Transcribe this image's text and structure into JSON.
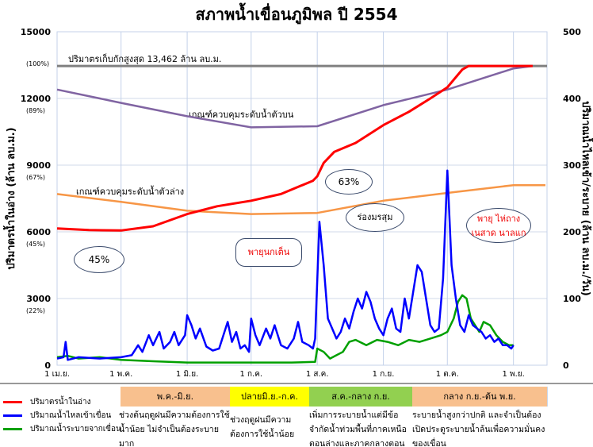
{
  "chart_data": {
    "type": "line",
    "title": "สภาพน้ำเขื่อนภูมิพล ปี 2554",
    "ylabel": "ปริมาตรน้ำในอ่าง (ล้าน ลบ.ม.)",
    "y2label": "ปริมาณน้ำไหลเข้า/ระบาย (ล้าน ลบ.ม./วัน)",
    "ylim": [
      0,
      15000
    ],
    "y2lim": [
      0,
      500
    ],
    "yticks": [
      "0",
      "3000",
      "6000",
      "9000",
      "12000",
      "15000"
    ],
    "ypct": [
      "(22%)",
      "(45%)",
      "(67%)",
      "(89%)",
      "(100%)"
    ],
    "y2ticks": [
      "0",
      "100",
      "200",
      "300",
      "400",
      "500"
    ],
    "xticks": [
      "1 เม.ย.",
      "1 พ.ค.",
      "1 มิ.ย.",
      "1 ก.ค.",
      "1 ส.ค.",
      "1 ก.ย.",
      "1 ต.ค.",
      "1 พ.ย."
    ],
    "max_capacity": {
      "value": 13462,
      "label": "ปริมาตรเก็บกักสูงสุด 13,462  ล้าน ลบ.ม."
    },
    "upper_rule_label": "เกณฑ์ควบคุมระดับน้ำตัวบน",
    "lower_rule_label": "เกณฑ์ควบคุมระดับน้ำตัวล่าง",
    "series": [
      {
        "name": "ปริมาตรน้ำในอ่าง",
        "axis": "left",
        "color": "#ff0000",
        "points": [
          [
            0,
            6150
          ],
          [
            15,
            6080
          ],
          [
            30,
            6060
          ],
          [
            45,
            6250
          ],
          [
            61,
            6800
          ],
          [
            75,
            7150
          ],
          [
            91,
            7400
          ],
          [
            105,
            7700
          ],
          [
            120,
            8300
          ],
          [
            122,
            8500
          ],
          [
            125,
            9100
          ],
          [
            130,
            9600
          ],
          [
            140,
            10000
          ],
          [
            153,
            10800
          ],
          [
            165,
            11400
          ],
          [
            175,
            12000
          ],
          [
            183,
            12500
          ],
          [
            190,
            13300
          ],
          [
            193,
            13462
          ],
          [
            223,
            13462
          ]
        ]
      },
      {
        "name": "เกณฑ์ควบคุมระดับน้ำตัวบน",
        "axis": "left",
        "color": "#8064a2",
        "points": [
          [
            0,
            12400
          ],
          [
            30,
            11800
          ],
          [
            61,
            11200
          ],
          [
            91,
            10700
          ],
          [
            122,
            10750
          ],
          [
            153,
            11700
          ],
          [
            183,
            12400
          ],
          [
            214,
            13350
          ],
          [
            223,
            13462
          ]
        ]
      },
      {
        "name": "เกณฑ์ควบคุมระดับน้ำตัวล่าง",
        "axis": "left",
        "color": "#f79646",
        "points": [
          [
            0,
            7700
          ],
          [
            30,
            7350
          ],
          [
            61,
            6950
          ],
          [
            91,
            6800
          ],
          [
            122,
            6850
          ],
          [
            153,
            7400
          ],
          [
            183,
            7750
          ],
          [
            214,
            8100
          ],
          [
            229,
            8100
          ]
        ]
      },
      {
        "name": "ปริมาณน้ำไหลเข้าเขื่อน",
        "axis": "right",
        "color": "#0000ff",
        "points": [
          [
            0,
            10
          ],
          [
            3,
            12
          ],
          [
            4,
            35
          ],
          [
            5,
            8
          ],
          [
            10,
            12
          ],
          [
            20,
            10
          ],
          [
            30,
            12
          ],
          [
            35,
            15
          ],
          [
            38,
            30
          ],
          [
            40,
            20
          ],
          [
            43,
            45
          ],
          [
            45,
            30
          ],
          [
            48,
            50
          ],
          [
            50,
            25
          ],
          [
            53,
            35
          ],
          [
            55,
            50
          ],
          [
            57,
            30
          ],
          [
            60,
            45
          ],
          [
            61,
            75
          ],
          [
            63,
            60
          ],
          [
            65,
            40
          ],
          [
            67,
            55
          ],
          [
            70,
            28
          ],
          [
            73,
            22
          ],
          [
            76,
            25
          ],
          [
            78,
            45
          ],
          [
            80,
            65
          ],
          [
            82,
            35
          ],
          [
            84,
            50
          ],
          [
            86,
            25
          ],
          [
            88,
            30
          ],
          [
            90,
            20
          ],
          [
            91,
            70
          ],
          [
            93,
            45
          ],
          [
            95,
            30
          ],
          [
            98,
            55
          ],
          [
            100,
            40
          ],
          [
            102,
            60
          ],
          [
            105,
            30
          ],
          [
            108,
            25
          ],
          [
            111,
            40
          ],
          [
            113,
            65
          ],
          [
            115,
            35
          ],
          [
            118,
            30
          ],
          [
            120,
            25
          ],
          [
            121,
            40
          ],
          [
            123,
            215
          ],
          [
            125,
            150
          ],
          [
            127,
            70
          ],
          [
            129,
            55
          ],
          [
            131,
            40
          ],
          [
            133,
            50
          ],
          [
            135,
            70
          ],
          [
            137,
            55
          ],
          [
            139,
            80
          ],
          [
            141,
            100
          ],
          [
            143,
            85
          ],
          [
            145,
            110
          ],
          [
            147,
            95
          ],
          [
            149,
            70
          ],
          [
            151,
            55
          ],
          [
            153,
            45
          ],
          [
            155,
            70
          ],
          [
            157,
            85
          ],
          [
            159,
            55
          ],
          [
            161,
            50
          ],
          [
            163,
            100
          ],
          [
            165,
            70
          ],
          [
            167,
            110
          ],
          [
            169,
            150
          ],
          [
            171,
            140
          ],
          [
            173,
            100
          ],
          [
            175,
            60
          ],
          [
            177,
            50
          ],
          [
            179,
            55
          ],
          [
            181,
            130
          ],
          [
            183,
            292
          ],
          [
            185,
            150
          ],
          [
            187,
            100
          ],
          [
            189,
            60
          ],
          [
            191,
            50
          ],
          [
            193,
            75
          ],
          [
            195,
            60
          ],
          [
            197,
            55
          ],
          [
            199,
            50
          ],
          [
            201,
            40
          ],
          [
            203,
            45
          ],
          [
            205,
            35
          ],
          [
            207,
            40
          ],
          [
            209,
            30
          ],
          [
            211,
            30
          ],
          [
            213,
            25
          ],
          [
            214,
            30
          ]
        ]
      },
      {
        "name": "ปริมาณน้ำระบายจากเขื่อน",
        "axis": "right",
        "color": "#00a000",
        "points": [
          [
            0,
            12
          ],
          [
            5,
            14
          ],
          [
            10,
            10
          ],
          [
            20,
            12
          ],
          [
            30,
            8
          ],
          [
            45,
            6
          ],
          [
            61,
            4
          ],
          [
            91,
            4
          ],
          [
            110,
            4
          ],
          [
            121,
            5
          ],
          [
            122,
            25
          ],
          [
            125,
            20
          ],
          [
            128,
            10
          ],
          [
            131,
            15
          ],
          [
            134,
            20
          ],
          [
            137,
            35
          ],
          [
            140,
            38
          ],
          [
            145,
            30
          ],
          [
            150,
            38
          ],
          [
            155,
            35
          ],
          [
            160,
            30
          ],
          [
            165,
            38
          ],
          [
            170,
            35
          ],
          [
            175,
            40
          ],
          [
            180,
            45
          ],
          [
            183,
            50
          ],
          [
            186,
            70
          ],
          [
            188,
            95
          ],
          [
            190,
            105
          ],
          [
            192,
            100
          ],
          [
            194,
            70
          ],
          [
            196,
            60
          ],
          [
            198,
            50
          ],
          [
            200,
            65
          ],
          [
            203,
            60
          ],
          [
            206,
            45
          ],
          [
            209,
            35
          ],
          [
            212,
            30
          ],
          [
            214,
            30
          ]
        ]
      }
    ],
    "annotations": [
      "45%",
      "63%",
      "พายุนกเต็น",
      "ร่องมรสุม",
      "พายุ ไห่ถาง",
      "เนสาด นาลแก"
    ]
  },
  "periods": [
    {
      "header": "พ.ค.-มิ.ย.",
      "color": "#f8c08e",
      "text": "ช่วงต้นฤดูฝนมีความต้องการใช้น้ำน้อย ไม่จำเป็นต้องระบายมาก"
    },
    {
      "header": "ปลายมิ.ย.-ก.ค.",
      "color": "#ffff00",
      "text": "ช่วงฤดูฝนมีความต้องการใช้น้ำน้อย"
    },
    {
      "header": "ส.ค.-กลาง ก.ย.",
      "color": "#92d050",
      "text": "เพิ่มการระบายน้ำแต่มีข้อ จำกัดน้ำท่วมพื้นที่ภาคเหนือตอนล่างและภาคกลางตอนบน"
    },
    {
      "header": "กลาง ก.ย.-ต้น พ.ย.",
      "color": "#f8c08e",
      "text": "ระบายน้ำสูงกว่าปกติ และจำเป็นต้องเปิดประตูระบายน้ำล้นเพื่อความมั่นคงของเขื่อน"
    }
  ]
}
